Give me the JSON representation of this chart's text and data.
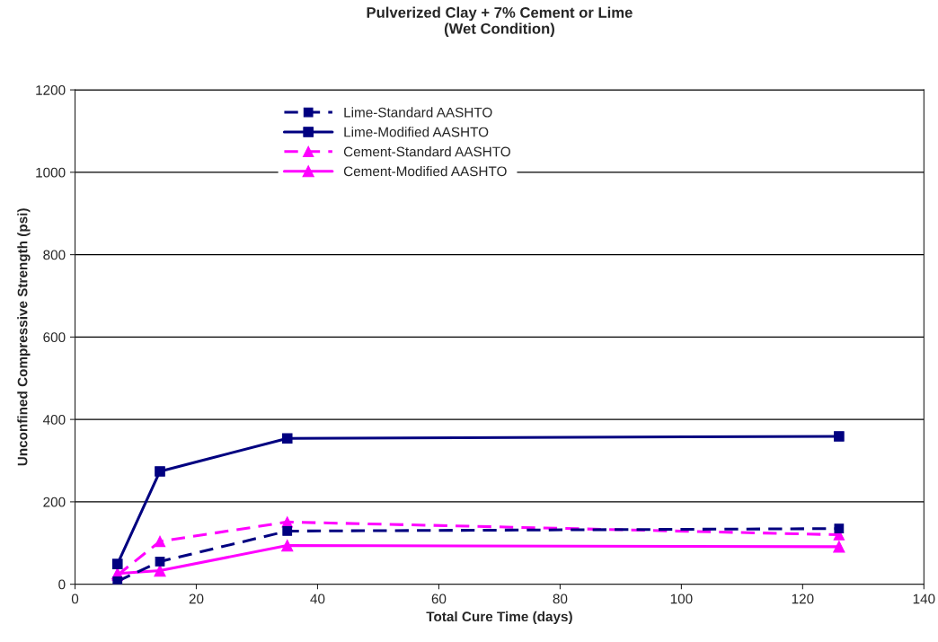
{
  "chart_data": {
    "type": "line",
    "title": "Pulverized Clay + 7% Cement or Lime\n(Wet Condition)",
    "xlabel": "Total Cure Time (days)",
    "ylabel": "Unconfined Compressive Strength (psi)",
    "x": [
      7,
      14,
      35,
      126
    ],
    "series": [
      {
        "name": "Lime-Standard AASHTO",
        "color": "#000080",
        "marker": "square",
        "line_style": "dashed",
        "values": [
          7,
          55,
          129,
          135
        ]
      },
      {
        "name": "Lime-Modified AASHTO",
        "color": "#000080",
        "marker": "square",
        "line_style": "solid",
        "values": [
          49,
          274,
          354,
          359
        ]
      },
      {
        "name": "Cement-Standard AASHTO",
        "color": "#ff00ff",
        "marker": "triangle",
        "line_style": "dashed",
        "values": [
          22,
          104,
          151,
          120
        ]
      },
      {
        "name": "Cement-Modified AASHTO",
        "color": "#ff00ff",
        "marker": "triangle",
        "line_style": "solid",
        "values": [
          26,
          33,
          94,
          91
        ]
      }
    ],
    "xlim": [
      0,
      140
    ],
    "xticks": [
      0,
      20,
      40,
      60,
      80,
      100,
      120,
      140
    ],
    "ylim": [
      0,
      1200
    ],
    "yticks": [
      0,
      200,
      400,
      600,
      800,
      1000,
      1200
    ],
    "grid": "y",
    "legend": "top"
  }
}
